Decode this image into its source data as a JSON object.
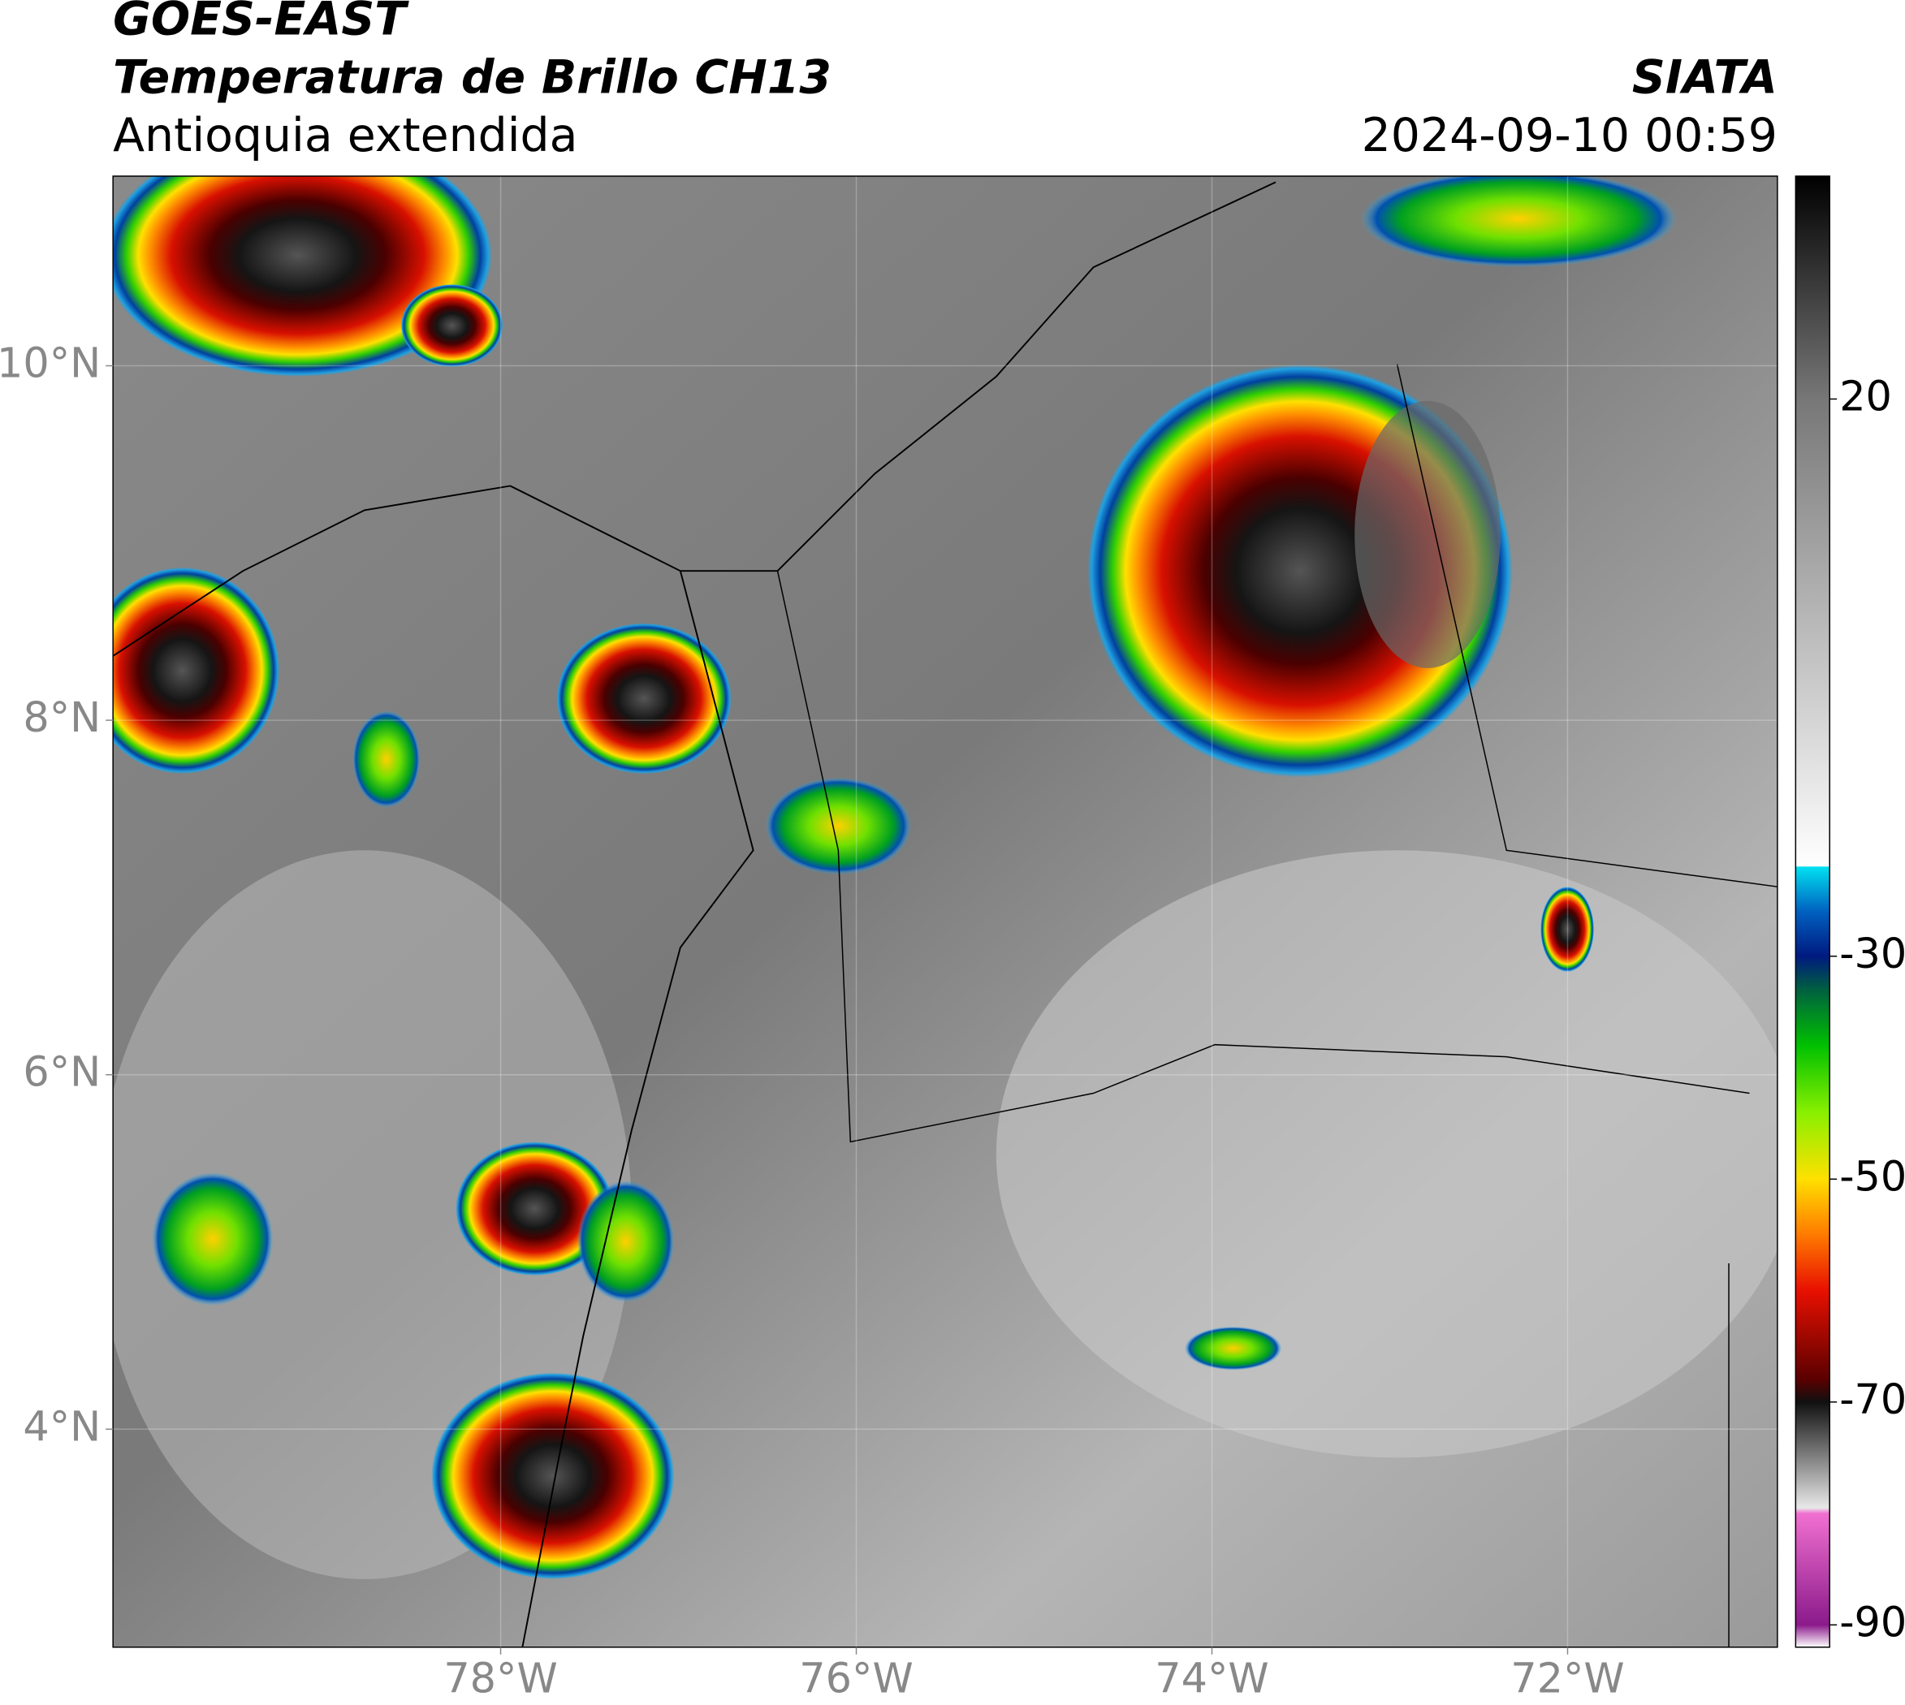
{
  "header": {
    "satellite": "GOES-EAST",
    "product": "Temperatura de Brillo CH13",
    "region": "Antioquia extendida",
    "source": "SIATA",
    "datetime": "2024-09-10 00:59"
  },
  "map": {
    "xlim": [
      -80.18,
      -70.82
    ],
    "ylim": [
      2.77,
      11.07
    ],
    "xticks": [
      {
        "value": -78,
        "label": "78°W"
      },
      {
        "value": -76,
        "label": "76°W"
      },
      {
        "value": -74,
        "label": "74°W"
      },
      {
        "value": -72,
        "label": "72°W"
      }
    ],
    "yticks": [
      {
        "value": 10,
        "label": "10°N"
      },
      {
        "value": 8,
        "label": "8°N"
      },
      {
        "value": 6,
        "label": "6°N"
      },
      {
        "value": 4,
        "label": "4°N"
      }
    ],
    "grid": true
  },
  "colorbar": {
    "lim": [
      -92,
      40
    ],
    "ticks": [
      20,
      -30,
      -50,
      -70,
      -90
    ],
    "stops": [
      [
        -92,
        "#ffffff"
      ],
      [
        -90,
        "#8b1a8b"
      ],
      [
        -80,
        "#f070d0"
      ],
      [
        -79.5,
        "#e8e8e8"
      ],
      [
        -70,
        "#101010"
      ],
      [
        -68,
        "#5a0000"
      ],
      [
        -60,
        "#e81000"
      ],
      [
        -55,
        "#ff7a00"
      ],
      [
        -50,
        "#ffe000"
      ],
      [
        -44,
        "#88f000"
      ],
      [
        -38,
        "#00c000"
      ],
      [
        -33,
        "#006040"
      ],
      [
        -30,
        "#001a80"
      ],
      [
        -26,
        "#0060c0"
      ],
      [
        -22,
        "#00e0f0"
      ],
      [
        -21.9,
        "#ffffff"
      ],
      [
        20,
        "#777777"
      ],
      [
        40,
        "#000000"
      ]
    ]
  }
}
